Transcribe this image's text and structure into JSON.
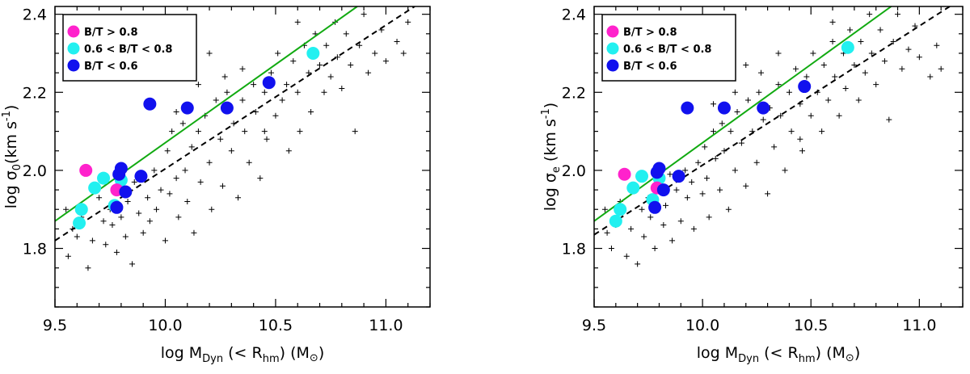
{
  "colors": {
    "bt_high": "#ff22cc",
    "bt_mid": "#22f0f0",
    "bt_low": "#1111ee",
    "fit_line": "#11aa11",
    "dashed_line": "#000000"
  },
  "chart_data": [
    {
      "type": "scatter",
      "id": "left",
      "xlabel": {
        "base": "log M",
        "sub1": "Dyn",
        "mid": " (< R",
        "sub2": "hm",
        "end": ") (M",
        "sun": "⊙",
        "close": ")"
      },
      "ylabel": {
        "base": "log σ",
        "sub": "0",
        "mid": "(km s",
        "sup": "-1",
        "end": ")"
      },
      "xlim": [
        9.5,
        11.2
      ],
      "ylim": [
        1.65,
        2.42
      ],
      "xticks": [
        "9.5",
        "10.0",
        "10.5",
        "11.0"
      ],
      "xtick_values": [
        9.5,
        10.0,
        10.5,
        11.0
      ],
      "yticks": [
        "1.8",
        "2.0",
        "2.2",
        "2.4"
      ],
      "ytick_values": [
        1.8,
        2.0,
        2.2,
        2.4
      ],
      "legend": [
        {
          "label": "B/T > 0.8",
          "group": "high"
        },
        {
          "label": "0.6 < B/T < 0.8",
          "group": "mid"
        },
        {
          "label": "B/T < 0.6",
          "group": "low"
        }
      ],
      "fit_line": {
        "x": [
          9.5,
          10.87
        ],
        "y": [
          1.87,
          2.42
        ]
      },
      "dashed_line": {
        "x": [
          9.5,
          11.13
        ],
        "y": [
          1.82,
          2.42
        ]
      },
      "circles": {
        "high": [
          [
            9.64,
            2.0
          ],
          [
            9.78,
            1.95
          ]
        ],
        "mid": [
          [
            9.61,
            1.865
          ],
          [
            9.62,
            1.9
          ],
          [
            9.68,
            1.955
          ],
          [
            9.72,
            1.98
          ],
          [
            9.77,
            1.91
          ],
          [
            9.8,
            1.975
          ],
          [
            10.67,
            2.3
          ]
        ],
        "low": [
          [
            9.78,
            1.905
          ],
          [
            9.79,
            1.99
          ],
          [
            9.8,
            2.005
          ],
          [
            9.82,
            1.945
          ],
          [
            9.89,
            1.985
          ],
          [
            9.93,
            2.17
          ],
          [
            10.1,
            2.16
          ],
          [
            10.28,
            2.16
          ],
          [
            10.47,
            2.225
          ]
        ]
      },
      "crosses": [
        [
          9.55,
          1.9
        ],
        [
          9.56,
          1.78
        ],
        [
          9.58,
          1.85
        ],
        [
          9.6,
          1.83
        ],
        [
          9.62,
          1.88
        ],
        [
          9.65,
          1.75
        ],
        [
          9.67,
          1.82
        ],
        [
          9.7,
          1.93
        ],
        [
          9.72,
          1.87
        ],
        [
          9.73,
          1.81
        ],
        [
          9.75,
          1.9
        ],
        [
          9.76,
          1.86
        ],
        [
          9.78,
          1.79
        ],
        [
          9.8,
          1.88
        ],
        [
          9.82,
          1.83
        ],
        [
          9.83,
          1.92
        ],
        [
          9.85,
          1.76
        ],
        [
          9.86,
          1.97
        ],
        [
          9.88,
          1.89
        ],
        [
          9.9,
          1.84
        ],
        [
          9.92,
          1.93
        ],
        [
          9.93,
          1.87
        ],
        [
          9.95,
          2.0
        ],
        [
          9.96,
          1.9
        ],
        [
          9.98,
          1.95
        ],
        [
          10.0,
          1.82
        ],
        [
          10.01,
          2.05
        ],
        [
          10.02,
          1.94
        ],
        [
          10.03,
          2.1
        ],
        [
          10.05,
          1.98
        ],
        [
          10.06,
          1.88
        ],
        [
          10.08,
          2.12
        ],
        [
          10.09,
          2.0
        ],
        [
          10.1,
          1.92
        ],
        [
          10.12,
          2.06
        ],
        [
          10.13,
          1.84
        ],
        [
          10.15,
          2.1
        ],
        [
          10.16,
          1.97
        ],
        [
          10.18,
          2.14
        ],
        [
          10.2,
          2.02
        ],
        [
          10.21,
          1.9
        ],
        [
          10.23,
          2.18
        ],
        [
          10.25,
          2.08
        ],
        [
          10.26,
          1.96
        ],
        [
          10.28,
          2.2
        ],
        [
          10.3,
          2.05
        ],
        [
          10.31,
          2.12
        ],
        [
          10.33,
          1.93
        ],
        [
          10.35,
          2.18
        ],
        [
          10.36,
          2.1
        ],
        [
          10.38,
          2.02
        ],
        [
          10.4,
          2.22
        ],
        [
          10.41,
          2.15
        ],
        [
          10.43,
          1.98
        ],
        [
          10.45,
          2.2
        ],
        [
          10.46,
          2.08
        ],
        [
          10.48,
          2.25
        ],
        [
          10.5,
          2.14
        ],
        [
          10.51,
          2.3
        ],
        [
          10.53,
          2.18
        ],
        [
          10.55,
          2.22
        ],
        [
          10.56,
          2.05
        ],
        [
          10.58,
          2.28
        ],
        [
          10.6,
          2.2
        ],
        [
          10.61,
          2.1
        ],
        [
          10.63,
          2.32
        ],
        [
          10.65,
          2.25
        ],
        [
          10.66,
          2.15
        ],
        [
          10.68,
          2.35
        ],
        [
          10.7,
          2.27
        ],
        [
          10.72,
          2.2
        ],
        [
          10.73,
          2.32
        ],
        [
          10.75,
          2.24
        ],
        [
          10.77,
          2.38
        ],
        [
          10.78,
          2.29
        ],
        [
          10.8,
          2.21
        ],
        [
          10.82,
          2.35
        ],
        [
          10.84,
          2.27
        ],
        [
          10.86,
          2.1
        ],
        [
          10.88,
          2.32
        ],
        [
          10.9,
          2.4
        ],
        [
          10.92,
          2.25
        ],
        [
          10.95,
          2.3
        ],
        [
          10.98,
          2.36
        ],
        [
          11.0,
          2.28
        ],
        [
          11.05,
          2.33
        ],
        [
          11.08,
          2.3
        ],
        [
          11.1,
          2.38
        ],
        [
          10.2,
          2.3
        ],
        [
          10.35,
          2.26
        ],
        [
          10.45,
          2.1
        ],
        [
          10.27,
          2.24
        ],
        [
          10.15,
          2.22
        ],
        [
          10.6,
          2.38
        ],
        [
          10.05,
          2.15
        ]
      ]
    },
    {
      "type": "scatter",
      "id": "right",
      "xlabel": {
        "base": "log M",
        "sub1": "Dyn",
        "mid": " (< R",
        "sub2": "hm",
        "end": ") (M",
        "sun": "⊙",
        "close": ")"
      },
      "ylabel": {
        "base": "log σ",
        "sub": "e",
        "mid": " (km s",
        "sup": "-1",
        "end": ")"
      },
      "xlim": [
        9.5,
        11.2
      ],
      "ylim": [
        1.65,
        2.42
      ],
      "xticks": [
        "9.5",
        "10.0",
        "10.5",
        "11.0"
      ],
      "xtick_values": [
        9.5,
        10.0,
        10.5,
        11.0
      ],
      "yticks": [
        "1.8",
        "2.0",
        "2.2",
        "2.4"
      ],
      "ytick_values": [
        1.8,
        2.0,
        2.2,
        2.4
      ],
      "legend": [
        {
          "label": "B/T > 0.8",
          "group": "high"
        },
        {
          "label": "0.6 < B/T < 0.8",
          "group": "mid"
        },
        {
          "label": "B/T < 0.6",
          "group": "low"
        }
      ],
      "fit_line": {
        "x": [
          9.5,
          10.87
        ],
        "y": [
          1.87,
          2.42
        ]
      },
      "dashed_line": {
        "x": [
          9.5,
          11.14
        ],
        "y": [
          1.835,
          2.42
        ]
      },
      "circles": {
        "high": [
          [
            9.64,
            1.99
          ],
          [
            9.79,
            1.955
          ]
        ],
        "mid": [
          [
            9.6,
            1.87
          ],
          [
            9.62,
            1.9
          ],
          [
            9.68,
            1.955
          ],
          [
            9.72,
            1.985
          ],
          [
            9.77,
            1.925
          ],
          [
            9.8,
            1.98
          ],
          [
            10.67,
            2.315
          ]
        ],
        "low": [
          [
            9.78,
            1.905
          ],
          [
            9.79,
            1.995
          ],
          [
            9.8,
            2.005
          ],
          [
            9.82,
            1.95
          ],
          [
            9.89,
            1.985
          ],
          [
            9.93,
            2.16
          ],
          [
            10.1,
            2.16
          ],
          [
            10.28,
            2.16
          ],
          [
            10.47,
            2.215
          ]
        ]
      },
      "crosses": [
        [
          9.55,
          1.9
        ],
        [
          9.56,
          1.84
        ],
        [
          9.58,
          1.8
        ],
        [
          9.6,
          1.86
        ],
        [
          9.62,
          1.92
        ],
        [
          9.65,
          1.78
        ],
        [
          9.67,
          1.85
        ],
        [
          9.7,
          1.76
        ],
        [
          9.72,
          1.9
        ],
        [
          9.73,
          1.83
        ],
        [
          9.75,
          1.93
        ],
        [
          9.76,
          1.88
        ],
        [
          9.78,
          1.8
        ],
        [
          9.8,
          1.96
        ],
        [
          9.82,
          1.86
        ],
        [
          9.83,
          1.91
        ],
        [
          9.85,
          1.99
        ],
        [
          9.86,
          1.82
        ],
        [
          9.88,
          1.95
        ],
        [
          9.9,
          1.87
        ],
        [
          9.92,
          2.0
        ],
        [
          9.93,
          1.93
        ],
        [
          9.95,
          1.97
        ],
        [
          9.96,
          1.85
        ],
        [
          9.98,
          2.02
        ],
        [
          10.0,
          1.94
        ],
        [
          10.01,
          2.06
        ],
        [
          10.02,
          1.98
        ],
        [
          10.03,
          1.88
        ],
        [
          10.05,
          2.1
        ],
        [
          10.06,
          2.03
        ],
        [
          10.08,
          1.95
        ],
        [
          10.09,
          2.12
        ],
        [
          10.1,
          2.05
        ],
        [
          10.12,
          1.9
        ],
        [
          10.13,
          2.1
        ],
        [
          10.15,
          2.0
        ],
        [
          10.16,
          2.15
        ],
        [
          10.18,
          2.07
        ],
        [
          10.2,
          1.96
        ],
        [
          10.21,
          2.18
        ],
        [
          10.23,
          2.1
        ],
        [
          10.25,
          2.02
        ],
        [
          10.26,
          2.2
        ],
        [
          10.28,
          2.13
        ],
        [
          10.3,
          1.94
        ],
        [
          10.31,
          2.16
        ],
        [
          10.33,
          2.06
        ],
        [
          10.35,
          2.22
        ],
        [
          10.36,
          2.14
        ],
        [
          10.38,
          2.0
        ],
        [
          10.4,
          2.2
        ],
        [
          10.41,
          2.1
        ],
        [
          10.43,
          2.26
        ],
        [
          10.45,
          2.17
        ],
        [
          10.46,
          2.05
        ],
        [
          10.48,
          2.24
        ],
        [
          10.5,
          2.14
        ],
        [
          10.51,
          2.3
        ],
        [
          10.53,
          2.2
        ],
        [
          10.55,
          2.1
        ],
        [
          10.56,
          2.27
        ],
        [
          10.58,
          2.18
        ],
        [
          10.6,
          2.33
        ],
        [
          10.61,
          2.24
        ],
        [
          10.63,
          2.14
        ],
        [
          10.65,
          2.3
        ],
        [
          10.66,
          2.21
        ],
        [
          10.68,
          2.36
        ],
        [
          10.7,
          2.27
        ],
        [
          10.72,
          2.18
        ],
        [
          10.73,
          2.33
        ],
        [
          10.75,
          2.25
        ],
        [
          10.77,
          2.4
        ],
        [
          10.78,
          2.3
        ],
        [
          10.8,
          2.22
        ],
        [
          10.82,
          2.36
        ],
        [
          10.84,
          2.28
        ],
        [
          10.86,
          2.13
        ],
        [
          10.88,
          2.33
        ],
        [
          10.9,
          2.4
        ],
        [
          10.92,
          2.26
        ],
        [
          10.95,
          2.31
        ],
        [
          10.98,
          2.37
        ],
        [
          11.0,
          2.29
        ],
        [
          11.05,
          2.24
        ],
        [
          11.08,
          2.32
        ],
        [
          11.1,
          2.26
        ],
        [
          10.2,
          2.27
        ],
        [
          10.35,
          2.3
        ],
        [
          10.45,
          2.08
        ],
        [
          10.27,
          2.25
        ],
        [
          10.15,
          2.2
        ],
        [
          10.6,
          2.38
        ],
        [
          10.05,
          2.17
        ]
      ]
    }
  ]
}
